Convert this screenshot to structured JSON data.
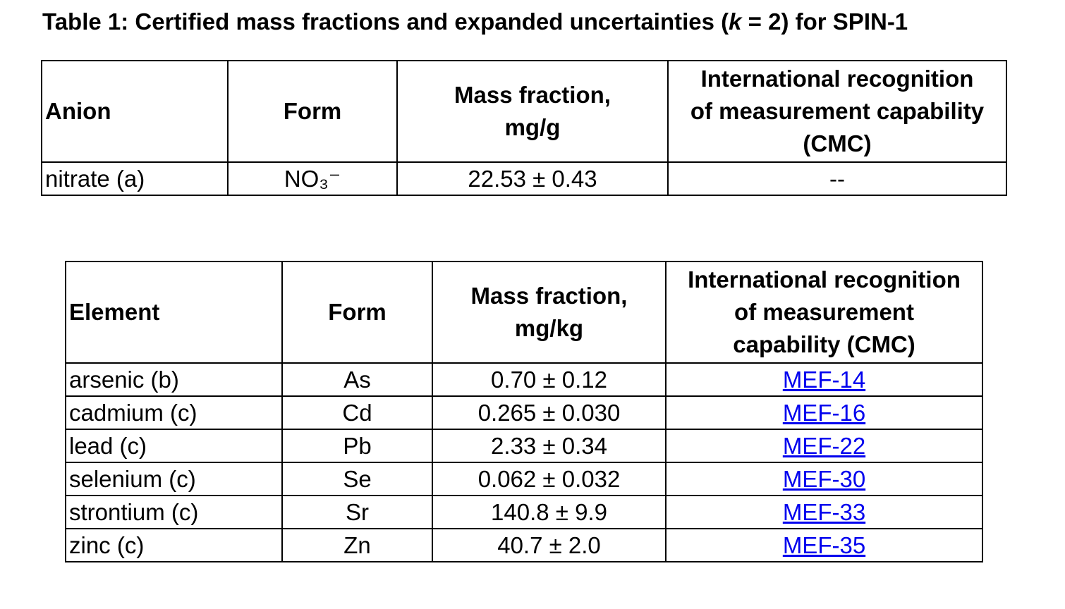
{
  "title": {
    "before": "Table 1: Certified mass fractions and expanded uncertainties (",
    "italic": "k",
    "after": " = 2) for SPIN-1"
  },
  "tables": [
    {
      "header": [
        [
          "Anion"
        ],
        [
          "Form"
        ],
        [
          "Mass fraction,",
          "mg/g"
        ],
        [
          "International recognition",
          "of measurement capability",
          "(CMC)"
        ]
      ],
      "rows": [
        [
          "nitrate (a)",
          "NO₃⁻",
          "22.53 ± 0.43",
          "--"
        ]
      ]
    },
    {
      "header": [
        [
          "Element"
        ],
        [
          "Form"
        ],
        [
          "Mass fraction,",
          "mg/kg"
        ],
        [
          "International recognition",
          "of measurement",
          "capability (CMC)"
        ]
      ],
      "rows": [
        [
          "arsenic (b)",
          "As",
          "0.70 ± 0.12",
          "MEF-14"
        ],
        [
          "cadmium (c)",
          "Cd",
          "0.265 ± 0.030",
          "MEF-16"
        ],
        [
          "lead (c)",
          "Pb",
          "2.33 ± 0.34",
          "MEF-22"
        ],
        [
          "selenium (c)",
          "Se",
          "0.062 ± 0.032",
          "MEF-30"
        ],
        [
          "strontium (c)",
          "Sr",
          "140.8 ± 9.9",
          "MEF-33"
        ],
        [
          "zinc (c)",
          "Zn",
          "40.7 ± 2.0",
          "MEF-35"
        ]
      ]
    }
  ]
}
